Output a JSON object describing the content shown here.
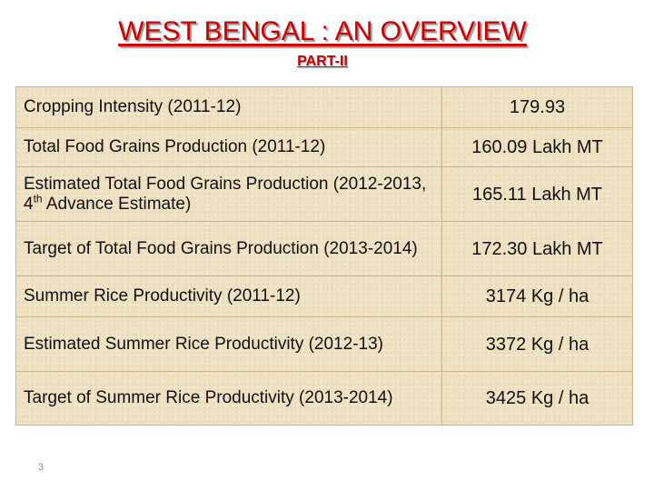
{
  "header": {
    "title": "WEST BENGAL : AN OVERVIEW",
    "subtitle": "PART-II"
  },
  "rows": [
    {
      "label": "Cropping Intensity  (2011-12)",
      "value": "179.93"
    },
    {
      "label": "Total Food Grains Production (2011-12)",
      "value": "160.09 Lakh MT"
    },
    {
      "label_pre": "Estimated Total Food Grains Production (2012-2013, 4",
      "label_sup": "th",
      "label_post": " Advance Estimate)",
      "value": "165.11 Lakh MT"
    },
    {
      "label": "Target of Total Food Grains Production (2013-2014)",
      "value": "172.30 Lakh MT"
    },
    {
      "label": "Summer Rice Productivity (2011-12)",
      "value": "3174 Kg / ha"
    },
    {
      "label": "Estimated Summer Rice Productivity (2012-13)",
      "value": "3372 Kg / ha"
    },
    {
      "label": "Target of Summer Rice Productivity (2013-2014)",
      "value": "3425 Kg / ha"
    }
  ],
  "footer": {
    "page_number": "3"
  }
}
